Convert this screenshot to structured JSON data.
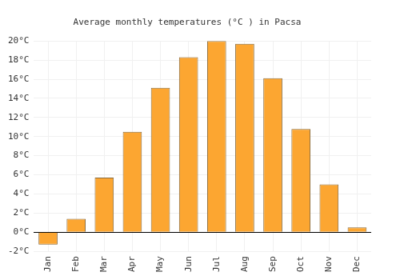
{
  "chart_data": {
    "type": "bar",
    "title": "Average monthly temperatures (°C ) in Pacsa",
    "categories": [
      "Jan",
      "Feb",
      "Mar",
      "Apr",
      "May",
      "Jun",
      "Jul",
      "Aug",
      "Sep",
      "Oct",
      "Nov",
      "Dec"
    ],
    "values": [
      -1.3,
      1.4,
      5.7,
      10.5,
      15.1,
      18.3,
      20.0,
      19.7,
      16.1,
      10.8,
      5.0,
      0.5
    ],
    "color": "#fca631",
    "ylim": [
      -2,
      20
    ],
    "yticks": [
      {
        "value": -2,
        "label": "-2°C"
      },
      {
        "value": 0,
        "label": "0°C"
      },
      {
        "value": 2,
        "label": "2°C"
      },
      {
        "value": 4,
        "label": "4°C"
      },
      {
        "value": 6,
        "label": "6°C"
      },
      {
        "value": 8,
        "label": "8°C"
      },
      {
        "value": 10,
        "label": "10°C"
      },
      {
        "value": 12,
        "label": "12°C"
      },
      {
        "value": 14,
        "label": "14°C"
      },
      {
        "value": 16,
        "label": "16°C"
      },
      {
        "value": 18,
        "label": "18°C"
      },
      {
        "value": 20,
        "label": "20°C"
      }
    ],
    "grid": true
  }
}
